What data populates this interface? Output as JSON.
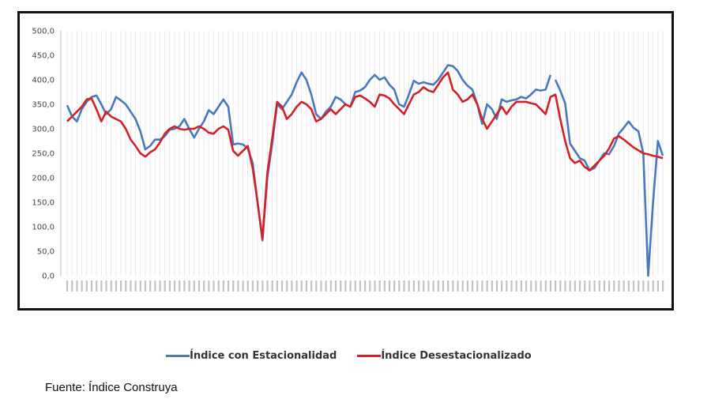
{
  "chart_data": {
    "type": "line",
    "yticks": [
      "500,0",
      "450,0",
      "400,0",
      "350,0",
      "300,0",
      "250,0",
      "200,0",
      "150,0",
      "100,0",
      "50,0",
      "0,0"
    ],
    "ylim": [
      0,
      500
    ],
    "x_count": 100,
    "grid": "vertical",
    "legend_position": "bottom",
    "series": [
      {
        "name": "Índice con Estacionalidad",
        "color": "#4a78bd",
        "values": [
          348,
          325,
          315,
          340,
          355,
          365,
          368,
          350,
          330,
          340,
          365,
          358,
          350,
          335,
          320,
          295,
          258,
          265,
          278,
          278,
          285,
          298,
          300,
          305,
          320,
          300,
          282,
          300,
          315,
          338,
          330,
          345,
          360,
          345,
          268,
          270,
          268,
          260,
          230,
          150,
          72,
          200,
          270,
          350,
          340,
          355,
          370,
          395,
          415,
          400,
          370,
          330,
          320,
          335,
          345,
          365,
          360,
          350,
          345,
          375,
          378,
          385,
          400,
          410,
          400,
          405,
          390,
          380,
          350,
          345,
          370,
          398,
          392,
          395,
          392,
          390,
          400,
          415,
          430,
          428,
          418,
          400,
          388,
          380,
          350,
          310,
          350,
          340,
          320,
          360,
          355,
          358,
          360,
          365,
          362,
          370,
          380,
          378,
          380,
          410
        ],
        "values2": [
          400,
          378,
          352,
          270,
          255,
          240,
          235,
          215,
          220,
          235,
          250,
          248,
          265,
          290,
          302,
          315,
          302,
          295,
          250,
          0,
          150,
          275,
          245
        ]
      },
      {
        "name": "Índice Desestacionalizado",
        "color": "#d42027",
        "values": [
          315,
          325,
          335,
          345,
          360,
          362,
          340,
          315,
          335,
          325,
          320,
          315,
          300,
          278,
          265,
          250,
          243,
          252,
          258,
          272,
          290,
          300,
          305,
          300,
          298,
          300,
          300,
          305,
          300,
          292,
          290,
          300,
          305,
          298,
          255,
          245,
          255,
          265,
          220,
          150,
          75,
          210,
          280,
          355,
          345,
          320,
          330,
          345,
          355,
          350,
          340,
          315,
          320,
          330,
          340,
          330,
          340,
          350,
          345,
          365,
          368,
          362,
          355,
          345,
          370,
          368,
          362,
          350,
          340,
          330,
          350,
          370,
          375,
          385,
          378,
          375,
          390,
          405,
          415,
          380,
          370,
          355,
          360,
          370,
          350,
          320,
          300,
          315,
          330,
          345,
          330,
          345,
          355,
          355,
          355,
          352,
          350,
          340,
          330,
          365
        ],
        "values2": [
          370,
          320,
          275,
          240,
          230,
          235,
          222,
          215,
          225,
          235,
          245,
          260,
          280,
          285,
          278,
          270,
          262,
          256,
          250,
          248,
          245,
          243,
          240
        ]
      }
    ]
  },
  "legend": {
    "series1": "Índice con Estacionalidad",
    "series2": "Índice Desestacionalizado"
  },
  "source": "Fuente: Índice Construya"
}
